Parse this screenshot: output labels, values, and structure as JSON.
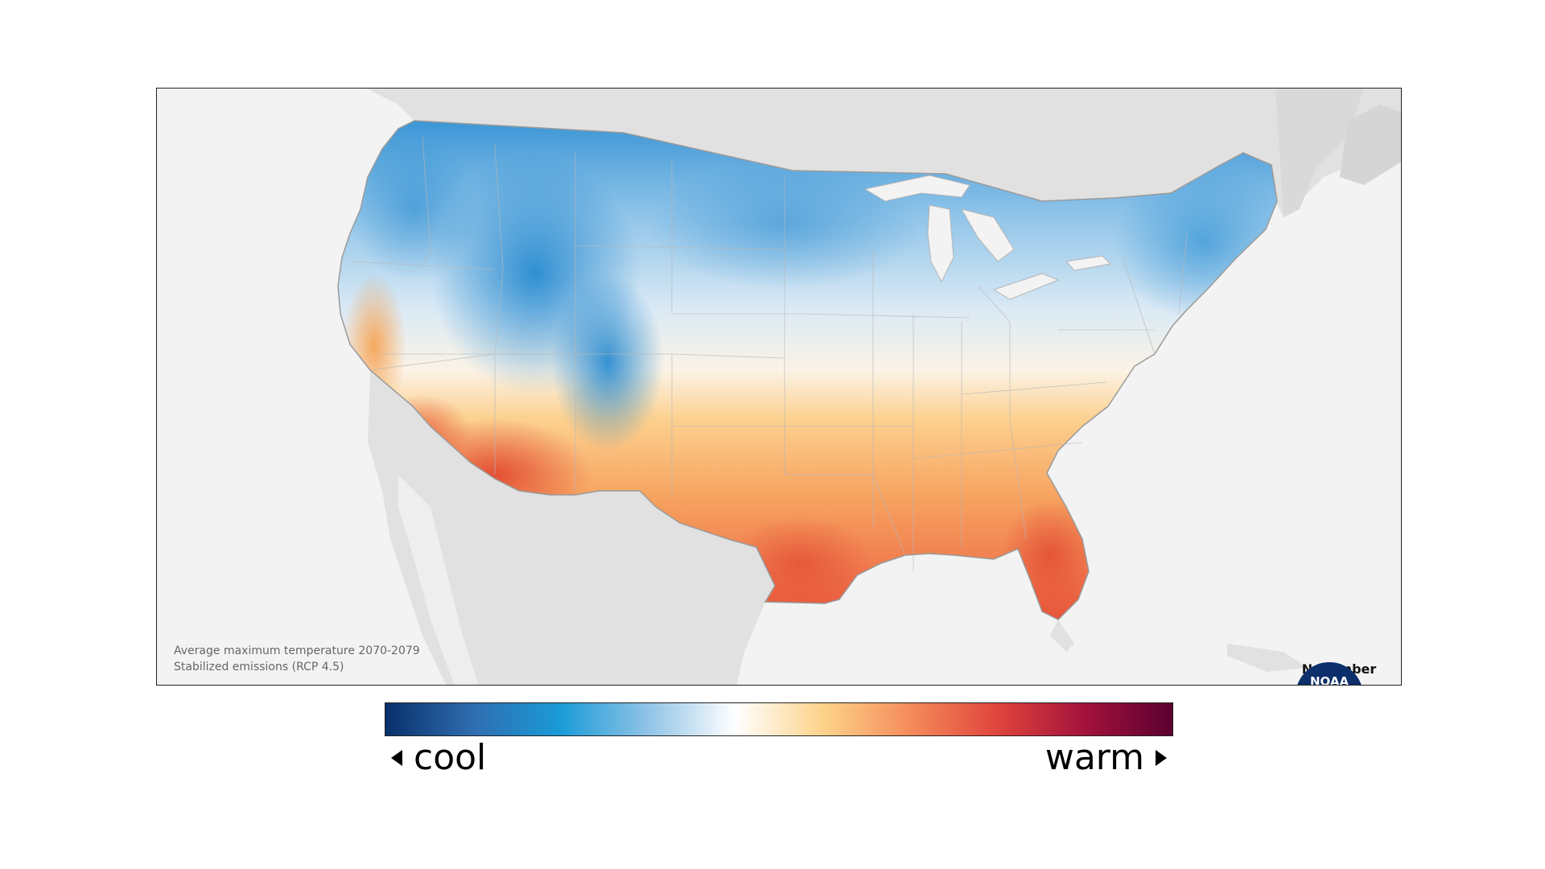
{
  "map": {
    "caption_line1": "Average maximum temperature 2070-2079",
    "caption_line2": "Stabilized emissions (RCP 4.5)",
    "month": "November",
    "logo_text": "NOAA",
    "region": "Contiguous United States"
  },
  "legend": {
    "cool_label": "cool",
    "warm_label": "warm",
    "colors": [
      "#08306b",
      "#2f6db0",
      "#1a9bd7",
      "#8fc3e6",
      "#ffffff",
      "#fdd38a",
      "#f58b5a",
      "#e0443c",
      "#a3123c",
      "#5b0030"
    ]
  },
  "colors": {
    "land_background": "#e2e2e2",
    "ocean": "#f3f3f3",
    "cool": "#2b8fd1",
    "warm": "#ea5a3c"
  }
}
